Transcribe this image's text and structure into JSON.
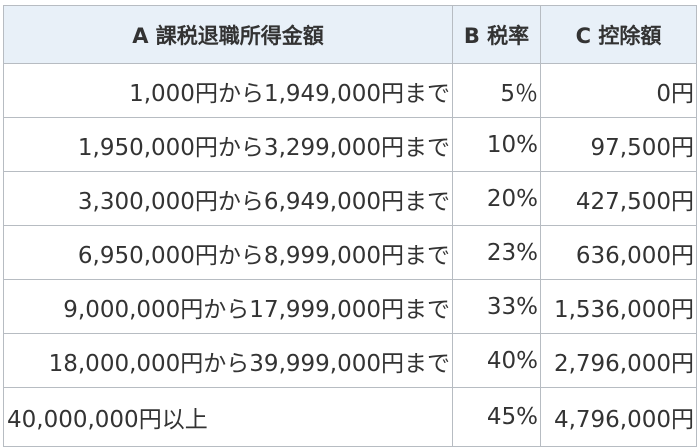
{
  "table": {
    "headers": [
      "A 課税退職所得金額",
      "B 税率",
      "C 控除額"
    ],
    "rows": [
      [
        "1,000円から1,949,000円まで",
        "5％",
        "0円"
      ],
      [
        "1,950,000円から3,299,000円まで",
        "10%",
        "97,500円"
      ],
      [
        "3,300,000円から6,949,000円まで",
        "20%",
        "427,500円"
      ],
      [
        "6,950,000円から8,999,000円まで",
        "23%",
        "636,000円"
      ],
      [
        "9,000,000円から17,999,000円まで",
        "33%",
        "1,536,000円"
      ],
      [
        "18,000,000円から39,999,000円まで",
        "40%",
        "2,796,000円"
      ],
      [
        "40,000,000円以上",
        "45%",
        "4,796,000円"
      ]
    ]
  },
  "colors": {
    "header_background": "#e8f0f8",
    "border": "#b7bcc2",
    "text": "#333333"
  }
}
